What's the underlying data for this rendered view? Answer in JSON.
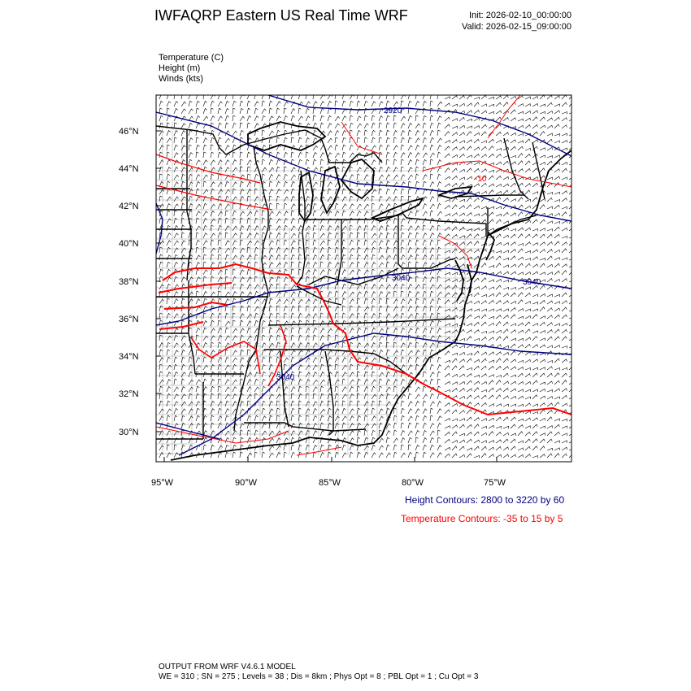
{
  "header": {
    "title": "IWFAQRP Eastern US Real Time WRF",
    "init": "Init: 2026-02-10_00:00:00",
    "valid": "Valid: 2026-02-15_09:00:00"
  },
  "variables": {
    "temperature": "Temperature   (C)",
    "height": "Height   (m)",
    "winds": "Winds   (kts)"
  },
  "map": {
    "lat_labels": [
      "46°N",
      "44°N",
      "42°N",
      "40°N",
      "38°N",
      "36°N",
      "34°N",
      "32°N",
      "30°N"
    ],
    "lon_labels": [
      "95°W",
      "90°W",
      "85°W",
      "80°W",
      "75°W"
    ],
    "height_contour_labels": [
      "2920",
      "3040",
      "3040",
      "3040"
    ],
    "temp_contour_labels": [
      "-10"
    ],
    "colors": {
      "height": "#000080",
      "temperature": "#ff0000",
      "boundaries": "#000000",
      "barbs": "#000000"
    }
  },
  "legend": {
    "height": "Height Contours: 2800 to 3220 by 60",
    "temperature": "Temperature Contours: -35 to 15 by 5"
  },
  "footer": {
    "line1": "OUTPUT FROM WRF V4.6.1 MODEL",
    "line2": "WE = 310 ; SN = 275 ; Levels = 38 ; Dis = 8km ; Phys Opt = 8 ; PBL Opt = 1 ; Cu Opt = 3"
  }
}
